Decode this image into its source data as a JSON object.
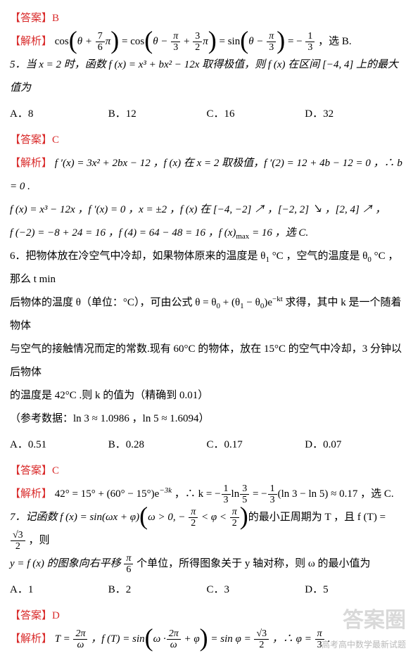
{
  "q4": {
    "answer_label": "【答案】B",
    "analysis_label": "【解析】",
    "analysis_text_parts": {
      "eq1a": "cos",
      "t1": "θ +",
      "frac1_num": "7",
      "frac1_den": "6",
      "t2": "π",
      "eq1b": "= cos",
      "t3": "θ −",
      "frac2_num": "π",
      "frac2_den": "3",
      "t4": "+",
      "frac3_num": "3",
      "frac3_den": "2",
      "t5": "π",
      "eq1c": "= sin",
      "t6": "θ −",
      "frac4_num": "π",
      "frac4_den": "3",
      "eq1d": "= −",
      "frac5_num": "1",
      "frac5_den": "3",
      "tail": "，选 B."
    }
  },
  "q5": {
    "stem": "5．当 x = 2 时，函数 f (x) = x³ + bx² − 12x 取得极值，则 f (x) 在区间 [−4, 4] 上的最大值为",
    "choices": {
      "A": "A．8",
      "B": "B．12",
      "C": "C．16",
      "D": "D．32"
    },
    "answer_label": "【答案】C",
    "analysis_label": "【解析】",
    "line1": "f ′(x) = 3x² + 2bx − 12 ，f (x) 在 x = 2 取极值，f ′(2) = 12 + 4b − 12 = 0 ，∴ b = 0 .",
    "line2": "f (x) = x³ − 12x ，f ′(x) = 0 ，x = ±2 ，f (x) 在 [−4, −2] ↗ ，[−2, 2] ↘ ，[2, 4] ↗ ，",
    "line3_a": "f (−2) = −8 + 24 = 16 ，f (4) = 64 − 48 = 16 ，f (x)",
    "line3_sub": "max",
    "line3_b": " = 16 ，选 C."
  },
  "q6": {
    "stem_l1_a": "6．把物体放在冷空气中冷却，如果物体原来的温度是 θ",
    "stem_l1_b": " °C ，空气的温度是 θ",
    "stem_l1_c": " °C ，那么 t min",
    "stem_l2_a": "后物体的温度 θ（单位：°C），可由公式 θ = θ",
    "stem_l2_b": " + (θ",
    "stem_l2_c": " − θ",
    "stem_l2_d": ")e",
    "stem_l2_exp": "−kt",
    "stem_l2_e": " 求得，其中 k 是一个随着物体",
    "stem_l3": "与空气的接触情况而定的常数.现有 60°C 的物体，放在 15°C 的空气中冷却，3 分钟以后物体",
    "stem_l4": "的温度是 42°C .则 k 的值为（精确到 0.01）",
    "ref": "（参考数据：ln 3 ≈ 1.0986 ，ln 5 ≈ 1.6094）",
    "choices": {
      "A": "A．0.51",
      "B": "B．0.28",
      "C": "C．0.17",
      "D": "D．0.07"
    },
    "answer_label": "【答案】C",
    "analysis_label": "【解析】",
    "analysis_a": "42° = 15° + (60° − 15°)e",
    "analysis_exp1": "−3k",
    "analysis_b": " ，∴ k = −",
    "frac1_num": "1",
    "frac1_den": "3",
    "analysis_c": "ln",
    "frac2_num": "3",
    "frac2_den": "5",
    "analysis_d": " = −",
    "frac3_num": "1",
    "frac3_den": "3",
    "analysis_e": "(ln 3 − ln 5) ≈ 0.17 ，选 C."
  },
  "q7": {
    "stem_a": "7．记函数 f (x) = sin(ωx + φ)",
    "stem_b": "ω > 0, −",
    "frac1_num": "π",
    "frac1_den": "2",
    "stem_c": " < φ <",
    "frac2_num": "π",
    "frac2_den": "2",
    "stem_d": "的最小正周期为 T ，且 f (T) =",
    "frac3_num": "√3",
    "frac3_den": "2",
    "stem_e": " ，则",
    "stem_l2_a": "y = f (x) 的图象向右平移",
    "frac4_num": "π",
    "frac4_den": "6",
    "stem_l2_b": "个单位，所得图象关于 y 轴对称，则 ω 的最小值为",
    "choices": {
      "A": "A．1",
      "B": "B．2",
      "C": "C．3",
      "D": "D．5"
    },
    "answer_label": "【答案】D",
    "analysis_label": "【解析】",
    "an_a": "T =",
    "an_frac1_num": "2π",
    "an_frac1_den": "ω",
    "an_b": " ，f (T) = sin",
    "an_c": "ω ·",
    "an_frac2_num": "2π",
    "an_frac2_den": "ω",
    "an_d": " + φ",
    "an_e": " = sin φ =",
    "an_frac3_num": "√3",
    "an_frac3_den": "2",
    "an_f": " ，∴ φ =",
    "an_frac4_num": "π",
    "an_frac4_den": "3",
    "an_g": " ."
  },
  "watermark": "答案圈",
  "watermark2": "高考高中数学最新试题"
}
